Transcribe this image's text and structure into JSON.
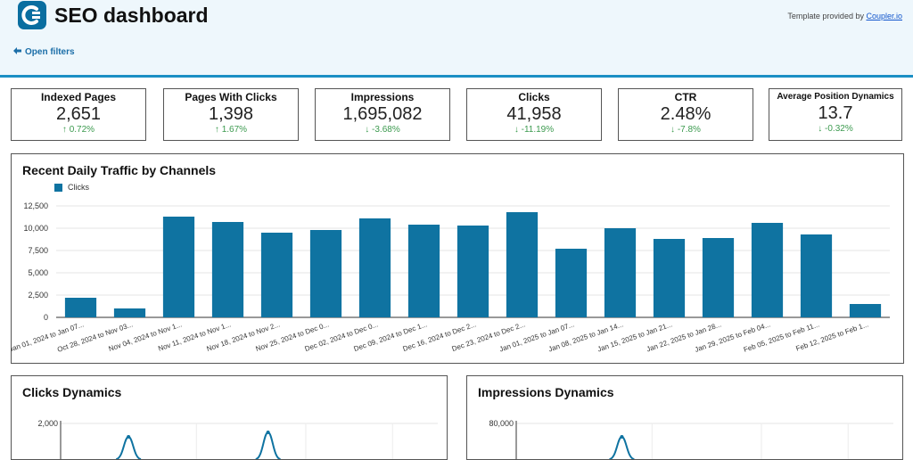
{
  "header": {
    "title": "SEO dashboard",
    "provided_prefix": "Template provided by ",
    "provided_link": "Coupler.io",
    "filters_label": "Open filters",
    "accent_color": "#1b8fc4",
    "logo_color": "#0a6ea0"
  },
  "kpis": [
    {
      "title": "Indexed Pages",
      "value": "2,651",
      "delta": "↑ 0.72%"
    },
    {
      "title": "Pages With Clicks",
      "value": "1,398",
      "delta": "↑ 1.67%"
    },
    {
      "title": "Impressions",
      "value": "1,695,082",
      "delta": "↓ -3.68%"
    },
    {
      "title": "Clicks",
      "value": "41,958",
      "delta": "↓ -11.19%"
    },
    {
      "title": "CTR",
      "value": "2.48%",
      "delta": "↓ -7.8%"
    },
    {
      "title": "Average Position Dynamics",
      "value": "13.7",
      "delta": "↓ -0.32%"
    }
  ],
  "traffic_panel": {
    "title": "Recent Daily Traffic by Channels"
  },
  "clicks_panel": {
    "title": "Clicks Dynamics"
  },
  "impressions_panel": {
    "title": "Impressions Dynamics"
  },
  "chart_data": [
    {
      "type": "bar",
      "title": "Recent Daily Traffic by Channels",
      "categories": [
        "Jan 01, 2024 to Jan 07...",
        "Oct 28, 2024 to Nov 03...",
        "Nov 04, 2024 to Nov 1...",
        "Nov 11, 2024 to Nov 1...",
        "Nov 18, 2024 to Nov 2...",
        "Nov 25, 2024 to Dec 0...",
        "Dec 02, 2024 to Dec 0...",
        "Dec 09, 2024 to Dec 1...",
        "Dec 16, 2024 to Dec 2...",
        "Dec 23, 2024 to Dec 2...",
        "Jan 01, 2025 to Jan 07...",
        "Jan 08, 2025 to Jan 14...",
        "Jan 15, 2025 to Jan 21...",
        "Jan 22, 2025 to Jan 28...",
        "Jan 29, 2025 to Feb 04...",
        "Feb 05, 2025 to Feb 11...",
        "Feb 12, 2025 to Feb 1..."
      ],
      "series": [
        {
          "name": "Clicks",
          "color": "#0f73a1",
          "values": [
            2200,
            1000,
            11300,
            10700,
            9500,
            9800,
            11100,
            10400,
            10300,
            11800,
            7700,
            10000,
            8800,
            8900,
            10600,
            9300,
            1500
          ]
        }
      ],
      "yticks": [
        "0",
        "2,500",
        "5,000",
        "7,500",
        "10,000",
        "12,500"
      ],
      "ylim": [
        0,
        12500
      ],
      "legend": "top-left",
      "grid": true
    },
    {
      "type": "line",
      "title": "Clicks Dynamics",
      "ytick_visible": "2,000",
      "y_visible": 2000,
      "series": [
        {
          "color": "#0f73a1",
          "peaks": [
            {
              "x": 0.18,
              "y": 1850
            },
            {
              "x": 0.55,
              "y": 1900
            }
          ]
        }
      ]
    },
    {
      "type": "line",
      "title": "Impressions Dynamics",
      "ytick_visible": "80,000",
      "y_visible": 80000,
      "series": [
        {
          "color": "#0f73a1",
          "peaks": [
            {
              "x": 0.28,
              "y": 74000
            }
          ]
        }
      ]
    }
  ]
}
